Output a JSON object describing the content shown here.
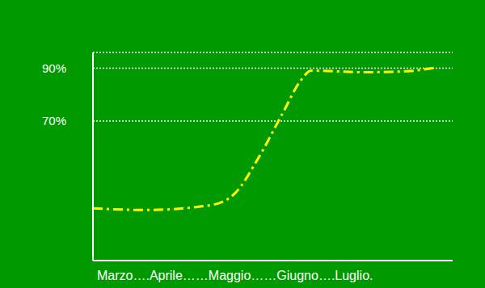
{
  "chart_data": {
    "type": "line",
    "x_label": "Marzo….Aprile……Maggio……Giugno….Luglio.",
    "x": [
      0,
      14.6,
      32.6,
      39.3,
      46.1,
      52.8,
      57.8,
      60.7,
      75.3,
      86.5,
      95.5
    ],
    "values": [
      36.8,
      36.2,
      38.0,
      42.3,
      56.2,
      73.1,
      85.4,
      89.1,
      88.5,
      88.8,
      90.3
    ],
    "color": "#ffff00",
    "line_style": "dashdot",
    "xlim": [
      0,
      100
    ],
    "ylim": [
      17,
      96
    ],
    "yticks": [
      {
        "value": 70,
        "label": "70%"
      },
      {
        "value": 90,
        "label": "90%"
      }
    ],
    "grid": true,
    "tick_labels": "y"
  }
}
